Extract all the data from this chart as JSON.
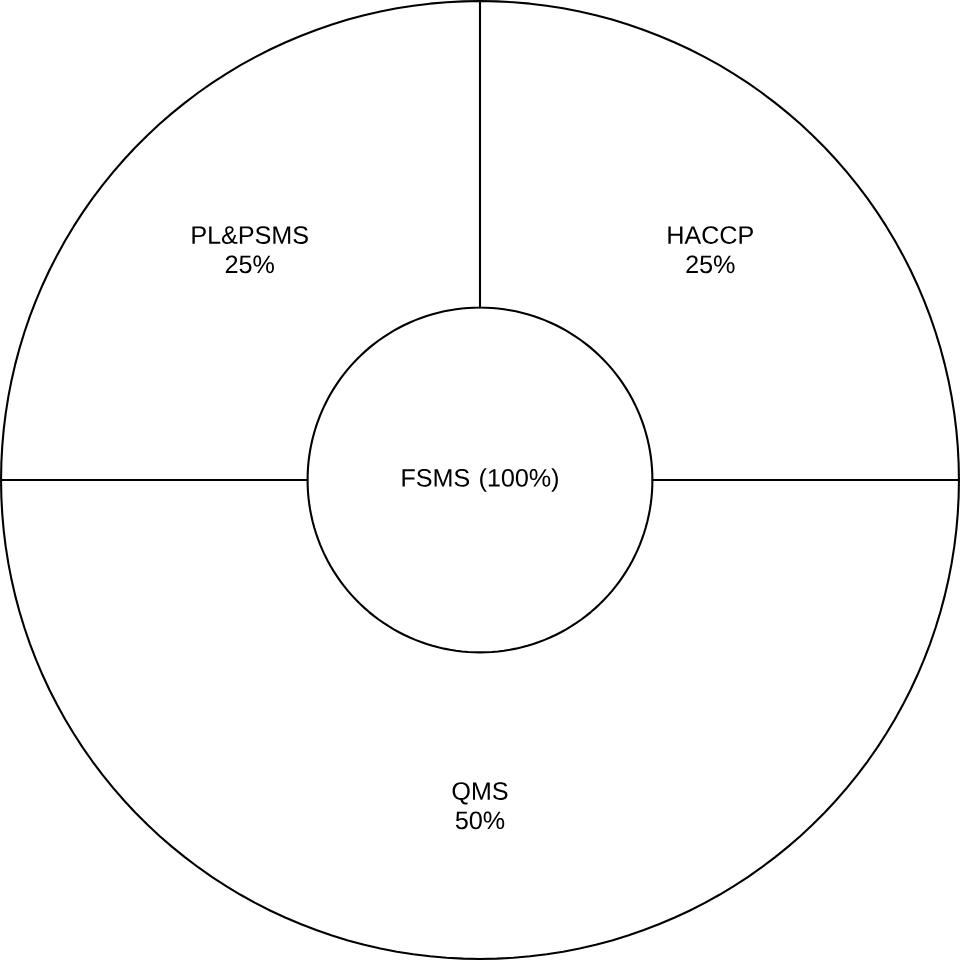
{
  "chart_data": {
    "type": "donut",
    "categories": [
      "PL&PSMS",
      "QMS",
      "HACCP"
    ],
    "values": [
      25,
      50,
      25
    ],
    "value_labels": [
      "25%",
      "50%",
      "25%"
    ],
    "colors": [
      "#ffffff",
      "#ffffff",
      "#ffffff"
    ],
    "annotations": [
      "FSMS (100%)"
    ]
  }
}
